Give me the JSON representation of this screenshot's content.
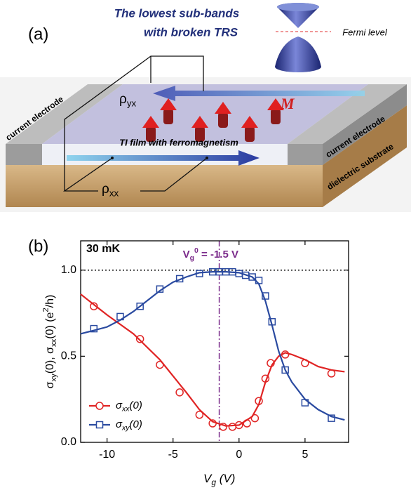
{
  "panel_a": {
    "label": "(a)",
    "title_lines": [
      "The lowest sub-bands",
      "with broken TRS"
    ],
    "fermi_level": "Fermi level",
    "left_electrode": "current electrode",
    "right_electrode": "current electrode",
    "rho_yx": [
      {
        "text": "ρ"
      },
      {
        "text": "yx",
        "pos": "sub"
      }
    ],
    "magnetization": "M",
    "film": "TI film with ferromagnetism",
    "substrate": "dielectric substrate",
    "rho_xx": [
      {
        "text": "ρ"
      },
      {
        "text": "xx",
        "pos": "sub"
      }
    ]
  },
  "chart_data": {
    "type": "scatter",
    "panel_label": "(b)",
    "temperature": "30 mK",
    "annotation": [
      {
        "text": "V"
      },
      {
        "text": "g",
        "pos": "sub"
      },
      {
        "text": "0",
        "pos": "sup"
      },
      {
        "text": " = -1.5 V"
      }
    ],
    "reference_x": -1.5,
    "reference_y": 1,
    "x_label": [
      {
        "text": "V"
      },
      {
        "text": "g",
        "pos": "sub"
      },
      {
        "text": " (V)"
      }
    ],
    "y_label": [
      {
        "text": "σ"
      },
      {
        "text": "xy",
        "pos": "sub"
      },
      {
        "text": "(0), "
      },
      {
        "text": "σ"
      },
      {
        "text": "xx",
        "pos": "sub"
      },
      {
        "text": "(0) ("
      },
      {
        "text": "e"
      },
      {
        "text": "2",
        "pos": "sup"
      },
      {
        "text": "/h)"
      }
    ],
    "xlim": [
      -12,
      8.3
    ],
    "ylim": [
      0,
      1.17
    ],
    "xticks": [
      -10,
      -5,
      0,
      5
    ],
    "yticks": [
      {
        "value": 0,
        "label": "0.0"
      },
      {
        "value": 0.5,
        "label": "0.5"
      },
      {
        "value": 1,
        "label": "1.0"
      }
    ],
    "series": [
      {
        "name": [
          {
            "text": "σ"
          },
          {
            "text": "xx",
            "pos": "sub"
          },
          {
            "text": "(0)"
          }
        ],
        "color": "#e02424",
        "marker": "circle",
        "x": [
          -11,
          -7.5,
          -6,
          -4.5,
          -3,
          -2,
          -1.2,
          -0.5,
          0,
          0.6,
          1.2,
          1.5,
          2,
          2.4,
          3.5,
          5,
          7
        ],
        "values": [
          0.79,
          0.6,
          0.45,
          0.29,
          0.16,
          0.11,
          0.09,
          0.09,
          0.1,
          0.11,
          0.14,
          0.24,
          0.37,
          0.46,
          0.51,
          0.46,
          0.4
        ],
        "fit_x": [
          -12,
          -10,
          -8,
          -6,
          -4,
          -3,
          -2,
          -1,
          0,
          1,
          1.5,
          2,
          2.5,
          3,
          3.5,
          4,
          5,
          6,
          7,
          8
        ],
        "fit_values": [
          0.86,
          0.74,
          0.63,
          0.48,
          0.29,
          0.19,
          0.12,
          0.095,
          0.1,
          0.15,
          0.22,
          0.35,
          0.45,
          0.5,
          0.52,
          0.51,
          0.48,
          0.44,
          0.42,
          0.41
        ]
      },
      {
        "name": [
          {
            "text": "σ"
          },
          {
            "text": "xy",
            "pos": "sub"
          },
          {
            "text": "(0)"
          }
        ],
        "color": "#2a4aa0",
        "marker": "square",
        "x": [
          -11,
          -9,
          -7.5,
          -6,
          -4.5,
          -3,
          -2,
          -1.5,
          -1,
          -0.5,
          0,
          0.5,
          1,
          1.5,
          2,
          2.5,
          3.5,
          5,
          7
        ],
        "values": [
          0.66,
          0.73,
          0.79,
          0.89,
          0.95,
          0.98,
          0.99,
          0.99,
          0.99,
          0.99,
          0.98,
          0.97,
          0.96,
          0.94,
          0.85,
          0.7,
          0.42,
          0.23,
          0.14
        ],
        "fit_x": [
          -12,
          -10,
          -9,
          -8,
          -7,
          -6,
          -5,
          -4,
          -3,
          -2,
          -1,
          0,
          1,
          1.5,
          2,
          2.5,
          3,
          3.5,
          4,
          5,
          6,
          7,
          8
        ],
        "fit_values": [
          0.63,
          0.67,
          0.71,
          0.76,
          0.82,
          0.88,
          0.93,
          0.96,
          0.985,
          0.99,
          0.99,
          0.985,
          0.96,
          0.92,
          0.82,
          0.68,
          0.53,
          0.42,
          0.35,
          0.25,
          0.19,
          0.15,
          0.13
        ]
      }
    ]
  }
}
